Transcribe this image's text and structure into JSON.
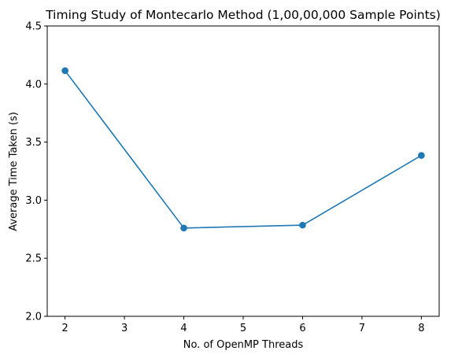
{
  "chart_data": {
    "type": "line",
    "title": "Timing Study of Montecarlo Method (1,00,00,000 Sample Points)",
    "xlabel": "No. of OpenMP Threads",
    "ylabel": "Average Time Taken (s)",
    "x": [
      2,
      4,
      6,
      8
    ],
    "series": [
      {
        "name": "Average Time Taken",
        "values": [
          4.115,
          2.76,
          2.785,
          3.385
        ],
        "color": "#1f77b4",
        "marker": "circle"
      }
    ],
    "xlim": [
      1.7,
      8.3
    ],
    "ylim": [
      2.0,
      4.5
    ],
    "xticks": [
      2,
      3,
      4,
      5,
      6,
      7,
      8
    ],
    "xtick_labels": [
      "2",
      "3",
      "4",
      "5",
      "6",
      "7",
      "8"
    ],
    "yticks": [
      2.0,
      2.5,
      3.0,
      3.5,
      4.0,
      4.5
    ],
    "ytick_labels": [
      "2.0",
      "2.5",
      "3.0",
      "3.5",
      "4.0",
      "4.5"
    ],
    "grid": false,
    "legend": "none"
  }
}
